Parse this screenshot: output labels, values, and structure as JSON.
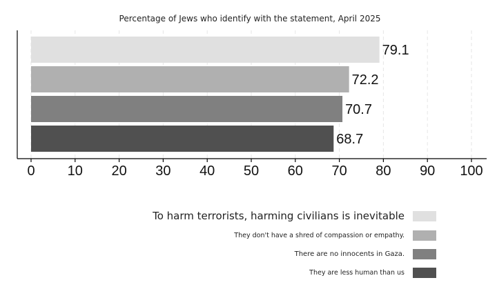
{
  "chart_data": {
    "type": "bar",
    "orientation": "horizontal",
    "title": "Percentage of Jews who identify with the statement, April 2025",
    "xlim": [
      0,
      100
    ],
    "x_ticks": [
      "0",
      "10",
      "20",
      "30",
      "40",
      "50",
      "60",
      "70",
      "80",
      "90",
      "100"
    ],
    "grid": true,
    "legend_position": "bottom-right",
    "series": [
      {
        "name": "To harm terrorists, harming civilians is inevitable",
        "value": 79.1,
        "label": "79.1",
        "color": "#e0e0e0"
      },
      {
        "name": "They don't have a shred of compassion or empathy.",
        "value": 72.2,
        "label": "72.2",
        "color": "#b0b0b0"
      },
      {
        "name": "There are no innocents in Gaza.",
        "value": 70.7,
        "label": "70.7",
        "color": "#808080"
      },
      {
        "name": "They are less human than us",
        "value": 68.7,
        "label": "68.7",
        "color": "#505050"
      }
    ]
  }
}
